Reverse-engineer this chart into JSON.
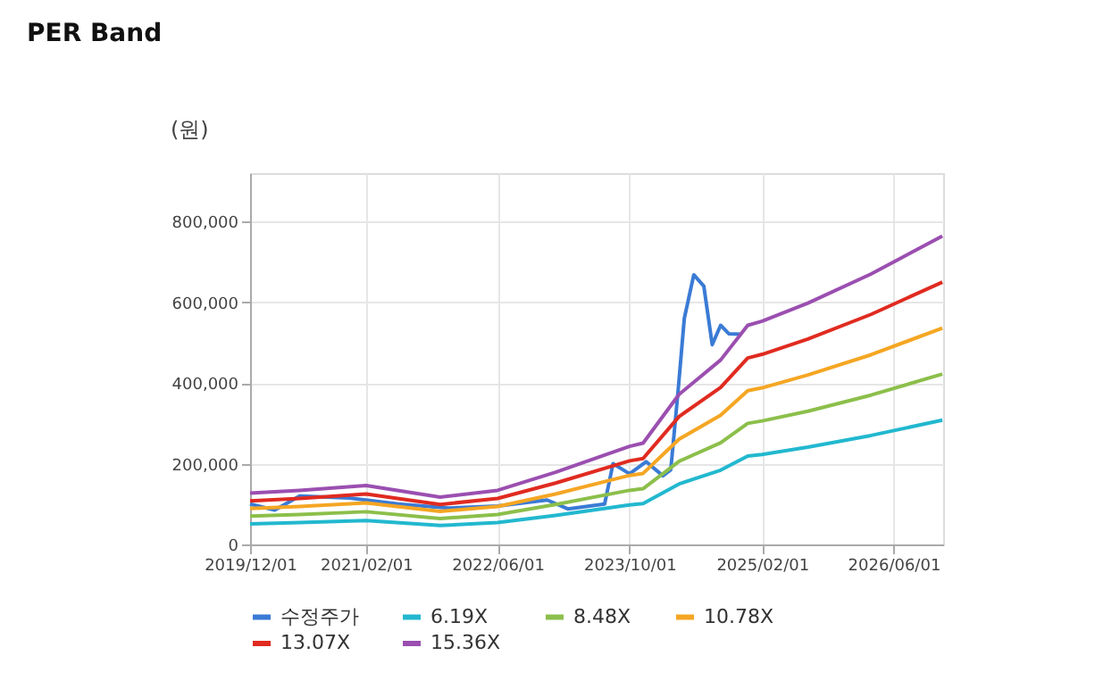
{
  "chart_data": {
    "type": "line",
    "title": "PER Band",
    "ylabel": "(원)",
    "x": [
      "2019-12-01",
      "2020-06-01",
      "2021-02-01",
      "2021-11-01",
      "2022-06-01",
      "2023-01-01",
      "2023-10-01",
      "2023-11-20",
      "2024-04-01",
      "2024-09-01",
      "2024-12-10",
      "2025-02-01",
      "2025-07-20",
      "2026-03-10",
      "2026-11-28"
    ],
    "series": [
      {
        "name": "수정주가",
        "color": "#3a7bd5",
        "x": [
          "2019-12-01",
          "2020-03-01",
          "2020-06-01",
          "2020-12-01",
          "2021-06-01",
          "2021-12-01",
          "2022-06-01",
          "2022-12-01",
          "2023-02-15",
          "2023-07-01",
          "2023-08-01",
          "2023-10-01",
          "2023-12-01",
          "2024-02-01",
          "2024-03-01",
          "2024-03-28",
          "2024-04-20",
          "2024-05-25",
          "2024-07-01",
          "2024-08-01",
          "2024-09-01",
          "2024-10-01",
          "2024-11-18"
        ],
        "values": [
          100000,
          85000,
          120000,
          115000,
          100000,
          90000,
          95000,
          110000,
          88000,
          100000,
          200000,
          175000,
          205000,
          170000,
          185000,
          380000,
          560000,
          668000,
          640000,
          495000,
          543000,
          522000,
          521000
        ]
      },
      {
        "name": "6.19X",
        "color": "#22b8cf",
        "values": [
          51000,
          54000,
          59000,
          47000,
          54000,
          72000,
          98000,
          101000,
          150000,
          184000,
          219000,
          223000,
          241000,
          270000,
          308000
        ]
      },
      {
        "name": "8.48X",
        "color": "#8cbf4b",
        "values": [
          70000,
          74000,
          81000,
          64000,
          74000,
          99000,
          134000,
          138000,
          206000,
          252000,
          300000,
          306000,
          330000,
          370000,
          422000
        ]
      },
      {
        "name": "10.78X",
        "color": "#f5a623",
        "values": [
          89000,
          94000,
          103000,
          82000,
          94000,
          125000,
          171000,
          176000,
          261000,
          320000,
          381000,
          388000,
          420000,
          470000,
          536000
        ]
      },
      {
        "name": "13.07X",
        "color": "#e02b20",
        "values": [
          108000,
          114000,
          125000,
          99000,
          114000,
          152000,
          207000,
          213000,
          317000,
          389000,
          462000,
          471000,
          509000,
          570000,
          650000
        ]
      },
      {
        "name": "15.36X",
        "color": "#9b4fb0",
        "values": [
          127000,
          134000,
          146000,
          117000,
          134000,
          179000,
          243000,
          251000,
          372000,
          457000,
          543000,
          553000,
          598000,
          670000,
          764000
        ]
      }
    ],
    "xlim": [
      "2019-12-01",
      "2026-12-01"
    ],
    "xticks": [
      {
        "value": "2019-12-01",
        "label": "2019/12/01"
      },
      {
        "value": "2021-02-01",
        "label": "2021/02/01"
      },
      {
        "value": "2022-06-01",
        "label": "2022/06/01"
      },
      {
        "value": "2023-10-01",
        "label": "2023/10/01"
      },
      {
        "value": "2025-02-01",
        "label": "2025/02/01"
      },
      {
        "value": "2026-06-01",
        "label": "2026/06/01"
      }
    ],
    "ylim": [
      0,
      920000
    ],
    "yticks": [
      0,
      {
        "value": 200000,
        "label": "200,000"
      },
      {
        "value": 400000,
        "label": "400,000"
      },
      {
        "value": 600000,
        "label": "600,000"
      },
      {
        "value": 800000,
        "label": "800,000"
      }
    ],
    "grid": true,
    "legend": "bottom",
    "marker": "none",
    "line_style": "solid"
  }
}
